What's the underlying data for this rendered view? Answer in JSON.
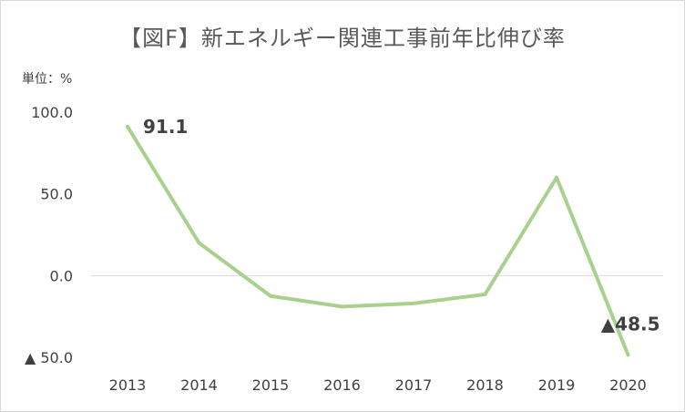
{
  "title": "【図F】新エネルギー関連工事前年比伸び率",
  "unit_label": "単位：%",
  "chart_data": {
    "type": "line",
    "title": "【図F】新エネルギー関連工事前年比伸び率",
    "xlabel": "",
    "ylabel": "単位：%",
    "categories": [
      "2013",
      "2014",
      "2015",
      "2016",
      "2017",
      "2018",
      "2019",
      "2020"
    ],
    "series": [
      {
        "values": [
          91.1,
          20.0,
          -12.5,
          -19.0,
          -17.0,
          -11.5,
          60.0,
          -48.5
        ],
        "color": "#a9d18e"
      }
    ],
    "ylim": [
      -50,
      100
    ],
    "yticks": [
      {
        "value": 100,
        "label": "100.0"
      },
      {
        "value": 50,
        "label": "50.0"
      },
      {
        "value": 0,
        "label": "0.0"
      },
      {
        "value": -50,
        "label": "▲ 50.0"
      }
    ],
    "data_labels": [
      {
        "index": 0,
        "text": "91.1"
      },
      {
        "index": 7,
        "text": "▲48.5"
      }
    ],
    "zero_line": true,
    "legend": "none"
  }
}
